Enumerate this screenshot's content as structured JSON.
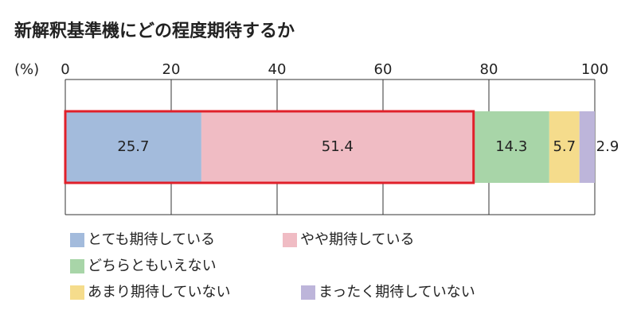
{
  "chart_data": {
    "type": "stacked-bar",
    "title": "新解釈基準機にどの程度期待するか",
    "x_label": "(%)",
    "xlim": [
      0,
      100
    ],
    "xticks": [
      0,
      20,
      40,
      60,
      80,
      100
    ],
    "grid": true,
    "legend": "bottom",
    "series": [
      {
        "name": "とても期待している",
        "color": "#a3bbdc",
        "values": [
          25.7
        ]
      },
      {
        "name": "やや期待している",
        "color": "#f0bcc4",
        "values": [
          51.4
        ]
      },
      {
        "name": "どちらともいえない",
        "color": "#a8d5a8",
        "values": [
          14.3
        ]
      },
      {
        "name": "あまり期待していない",
        "color": "#f5dc8c",
        "values": [
          5.7
        ]
      },
      {
        "name": "まったく期待していない",
        "color": "#bdb5da",
        "values": [
          2.9
        ]
      }
    ]
  }
}
